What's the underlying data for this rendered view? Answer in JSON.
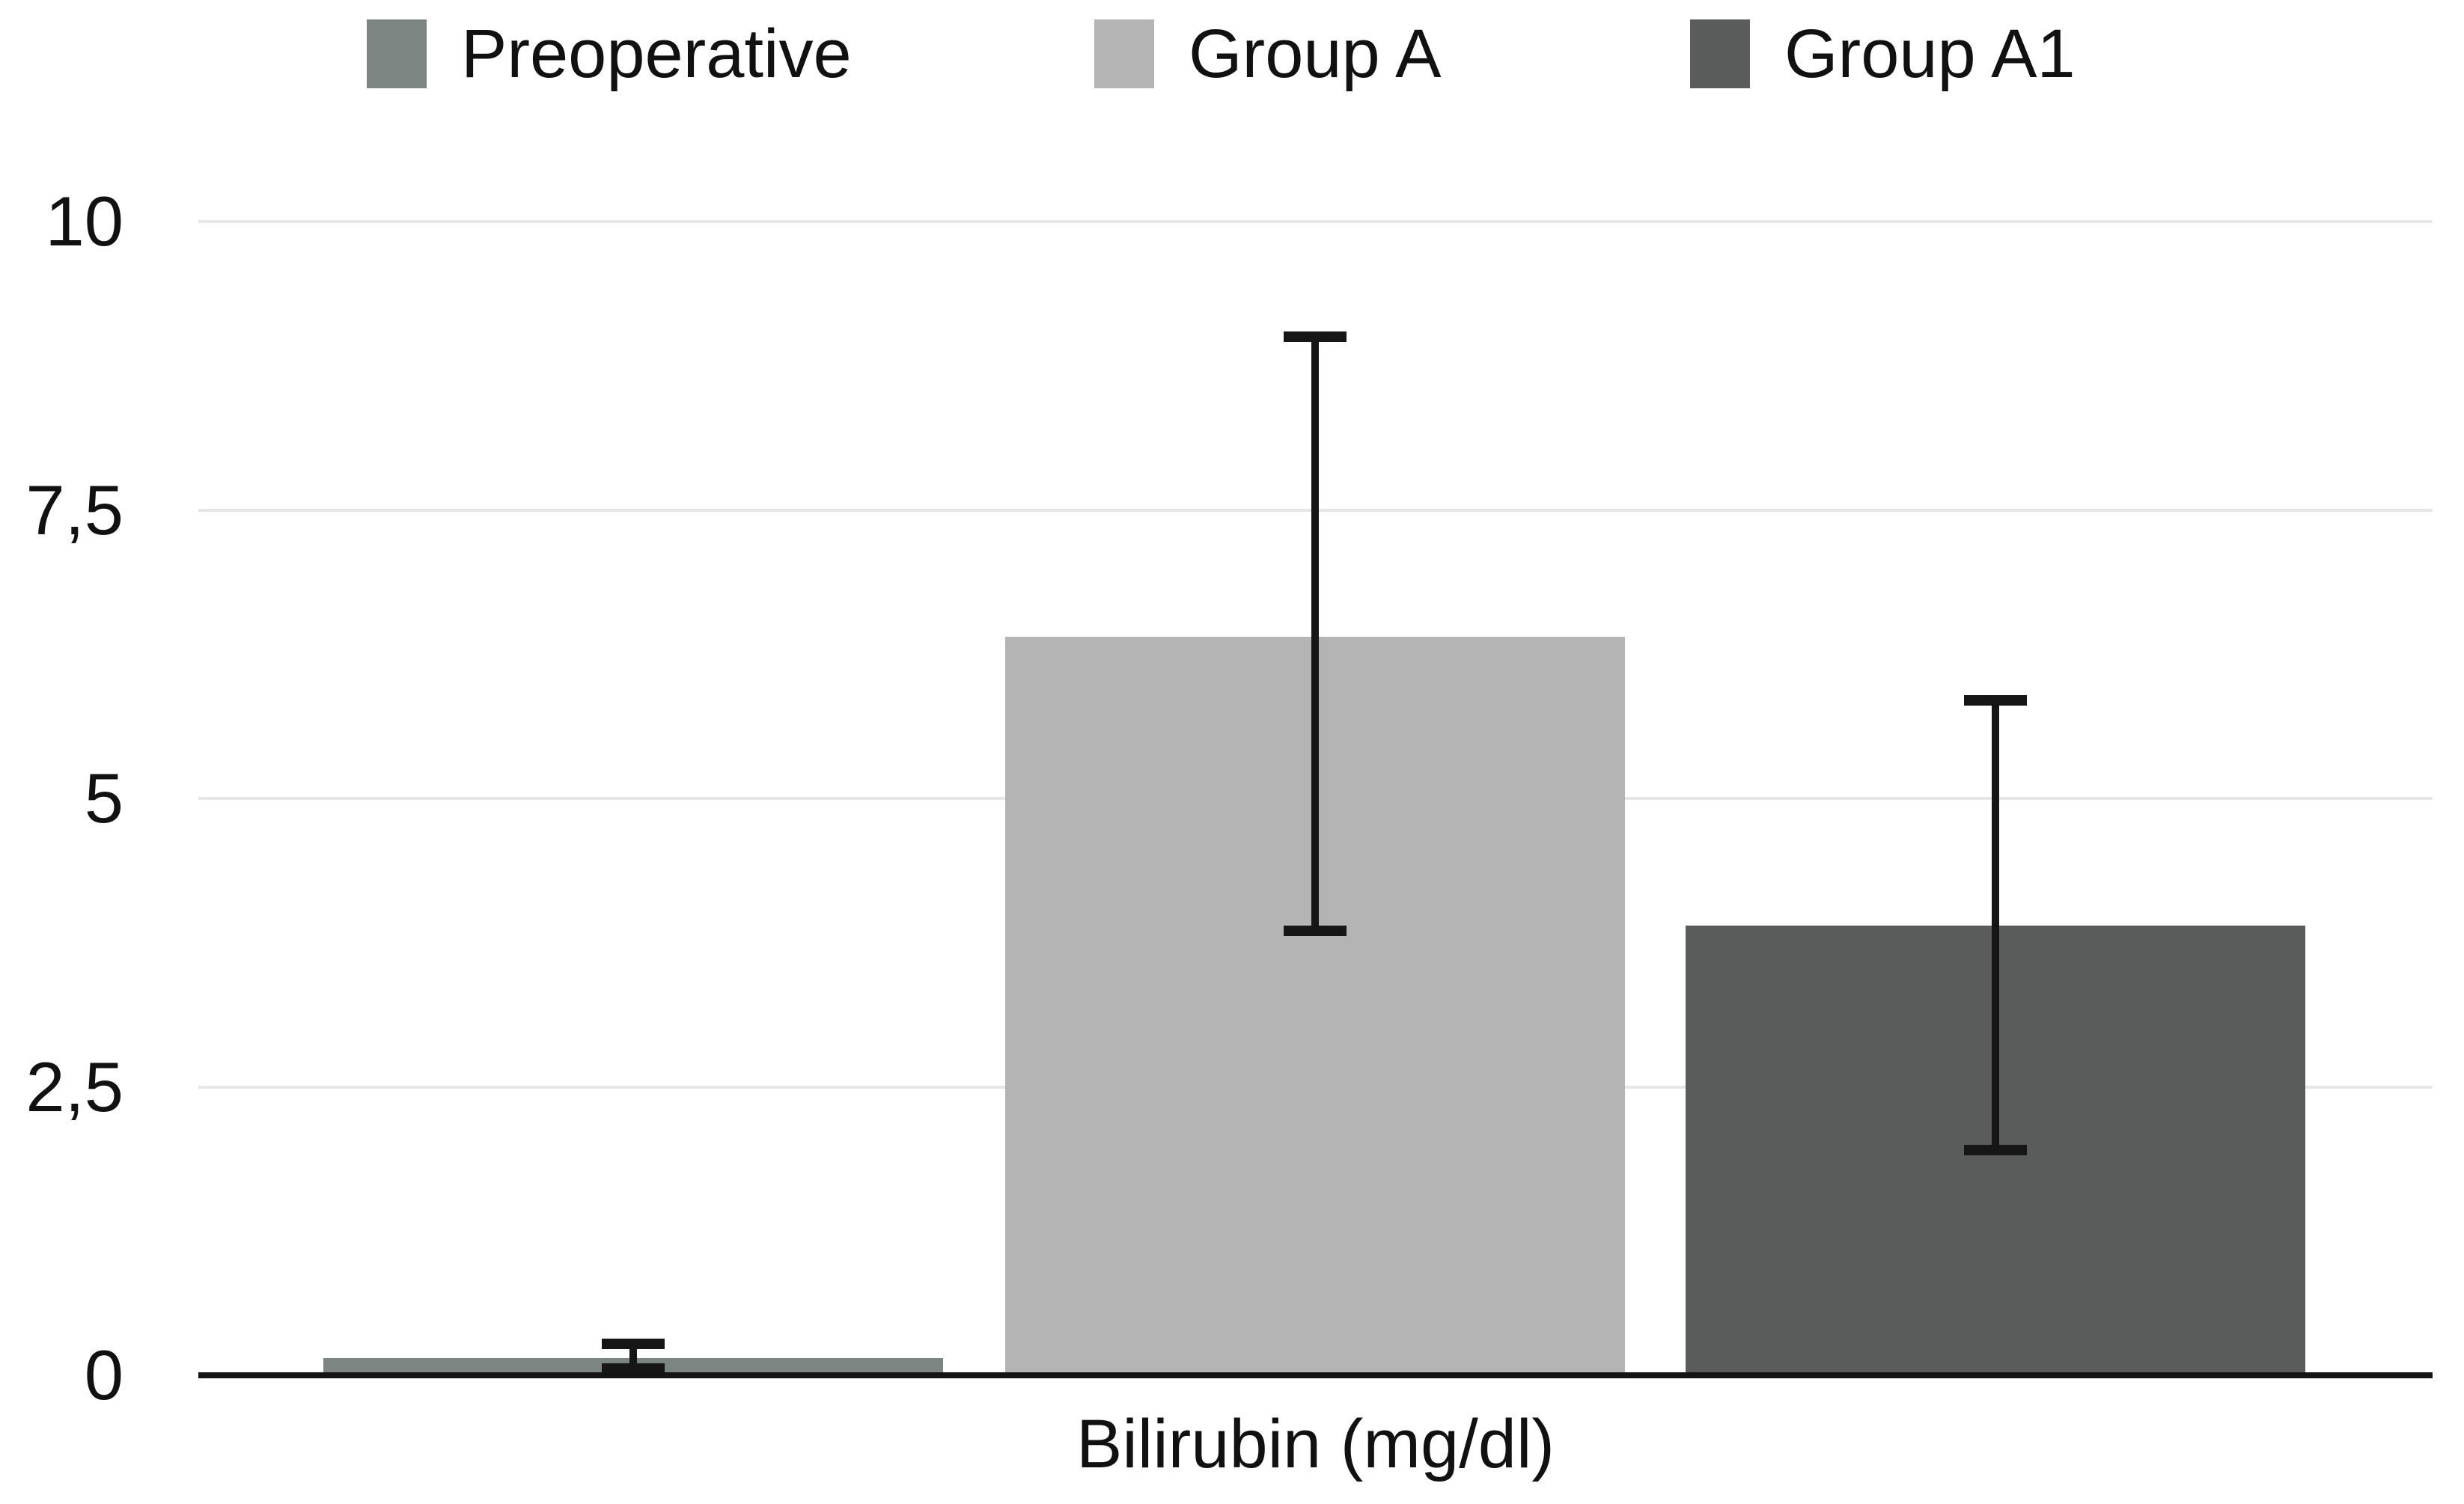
{
  "chart_data": {
    "type": "bar",
    "title": "",
    "xlabel": "Bilirubin (mg/dl)",
    "ylabel": "",
    "ylim": [
      0,
      10
    ],
    "grid": "horizontal",
    "legend_position": "top",
    "decimal_separator": ",",
    "categories": [
      "Bilirubin (mg/dl)"
    ],
    "yticks": [
      {
        "label": "10",
        "value": 10
      },
      {
        "label": "7,5",
        "value": 7.5
      },
      {
        "label": "5",
        "value": 5
      },
      {
        "label": "2,5",
        "value": 2.5
      },
      {
        "label": "0",
        "value": 0
      }
    ],
    "series": [
      {
        "name": "Preoperative",
        "color": "#7c8581",
        "value": 0.15,
        "error_low": 0.06,
        "error_high": 0.27
      },
      {
        "name": "Group A",
        "color": "#b4b4b4",
        "value": 6.4,
        "error_low": 3.85,
        "error_high": 9.0
      },
      {
        "name": "Group A1",
        "color": "#5a5c5c",
        "value": 3.9,
        "error_low": 1.95,
        "error_high": 5.85
      }
    ]
  }
}
